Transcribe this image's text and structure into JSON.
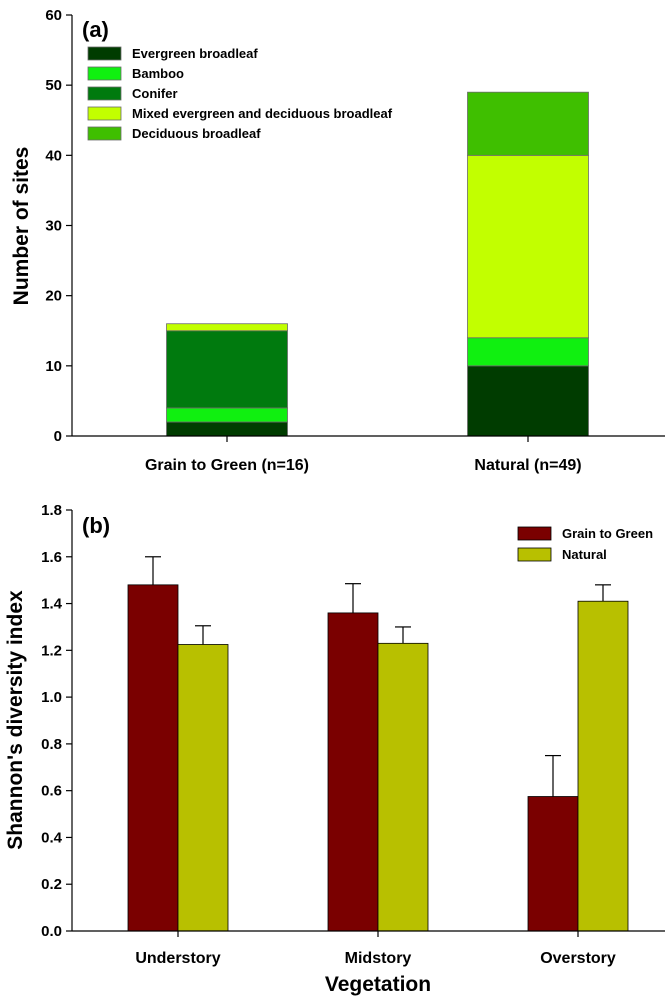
{
  "chart_data": [
    {
      "type": "bar",
      "stacked": true,
      "panel_label": "(a)",
      "categories": [
        "Grain to Green (n=16)",
        "Natural (n=49)"
      ],
      "series": [
        {
          "name": "Evergreen broadleaf",
          "color": "#003c00",
          "values": [
            2,
            10
          ]
        },
        {
          "name": "Bamboo",
          "color": "#10f010",
          "values": [
            2,
            4
          ]
        },
        {
          "name": "Conifer",
          "color": "#007a0e",
          "values": [
            11,
            0
          ]
        },
        {
          "name": "Mixed evergreen and deciduous broadleaf",
          "color": "#c2ff00",
          "values": [
            1,
            26
          ]
        },
        {
          "name": "Deciduous broadleaf",
          "color": "#3fbf00",
          "values": [
            0,
            9
          ]
        }
      ],
      "xlabel": "",
      "ylabel": "Number of sites",
      "ylim": [
        0,
        60
      ],
      "yticks": [
        0,
        10,
        20,
        30,
        40,
        50,
        60
      ],
      "grid": false,
      "legend_position": "top-left"
    },
    {
      "type": "bar",
      "panel_label": "(b)",
      "categories": [
        "Understory",
        "Midstory",
        "Overstory"
      ],
      "series": [
        {
          "name": "Grain to Green",
          "color": "#7a0000",
          "values": [
            1.48,
            1.36,
            0.575
          ],
          "errors": [
            0.12,
            0.125,
            0.175
          ]
        },
        {
          "name": "Natural",
          "color": "#b8c000",
          "values": [
            1.225,
            1.23,
            1.41
          ],
          "errors": [
            0.08,
            0.07,
            0.07
          ]
        }
      ],
      "xlabel": "Vegetation",
      "ylabel": "Shannon's diversity index",
      "ylim": [
        0,
        1.8
      ],
      "yticks": [
        "0.0",
        "0.2",
        "0.4",
        "0.6",
        "0.8",
        "1.0",
        "1.2",
        "1.4",
        "1.6",
        "1.8"
      ],
      "grid": false,
      "legend_position": "top-right"
    }
  ]
}
